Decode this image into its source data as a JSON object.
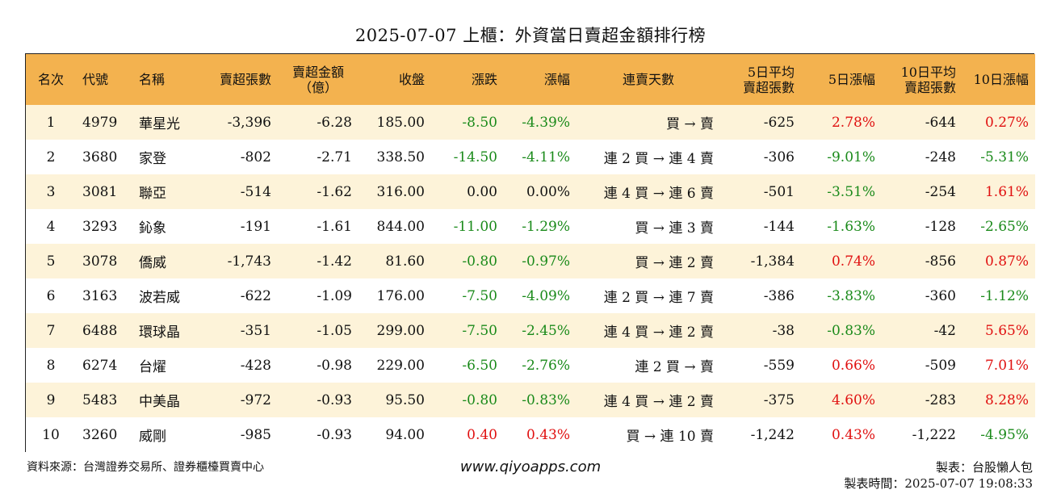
{
  "title": "2025-07-07 上櫃：外資當日賣超金額排行榜",
  "colors": {
    "header_bg": "#f3b24f",
    "odd_row_bg": "#fdf3d9",
    "up": "#e01010",
    "down": "#1a8a1a"
  },
  "headers": {
    "rank": "名次",
    "code": "代號",
    "name": "名稱",
    "sell_lots": "賣超張數",
    "sell_amount_line1": "賣超金額",
    "sell_amount_line2": "（億）",
    "close": "收盤",
    "change": "漲跌",
    "pct": "漲幅",
    "days": "連賣天數",
    "avg5_line1": "5日平均",
    "avg5_line2": "賣超張數",
    "pct5": "5日漲幅",
    "avg10_line1": "10日平均",
    "avg10_line2": "賣超張數",
    "pct10": "10日漲幅"
  },
  "rows": [
    {
      "rank": "1",
      "code": "4979",
      "name": "華星光",
      "lots": "-3,396",
      "amount": "-6.28",
      "close": "185.00",
      "chg": "-8.50",
      "chg_dir": "down",
      "pct": "-4.39%",
      "pct_dir": "down",
      "days": "買 → 賣",
      "avg5": "-625",
      "pct5": "2.78%",
      "pct5_dir": "up",
      "avg10": "-644",
      "pct10": "0.27%",
      "pct10_dir": "up"
    },
    {
      "rank": "2",
      "code": "3680",
      "name": "家登",
      "lots": "-802",
      "amount": "-2.71",
      "close": "338.50",
      "chg": "-14.50",
      "chg_dir": "down",
      "pct": "-4.11%",
      "pct_dir": "down",
      "days": "連 2 買 → 連 4 賣",
      "avg5": "-306",
      "pct5": "-9.01%",
      "pct5_dir": "down",
      "avg10": "-248",
      "pct10": "-5.31%",
      "pct10_dir": "down"
    },
    {
      "rank": "3",
      "code": "3081",
      "name": "聯亞",
      "lots": "-514",
      "amount": "-1.62",
      "close": "316.00",
      "chg": "0.00",
      "chg_dir": "flat",
      "pct": "0.00%",
      "pct_dir": "flat",
      "days": "連 4 買 → 連 6 賣",
      "avg5": "-501",
      "pct5": "-3.51%",
      "pct5_dir": "down",
      "avg10": "-254",
      "pct10": "1.61%",
      "pct10_dir": "up"
    },
    {
      "rank": "4",
      "code": "3293",
      "name": "鈊象",
      "lots": "-191",
      "amount": "-1.61",
      "close": "844.00",
      "chg": "-11.00",
      "chg_dir": "down",
      "pct": "-1.29%",
      "pct_dir": "down",
      "days": "買 → 連 3 賣",
      "avg5": "-144",
      "pct5": "-1.63%",
      "pct5_dir": "down",
      "avg10": "-128",
      "pct10": "-2.65%",
      "pct10_dir": "down"
    },
    {
      "rank": "5",
      "code": "3078",
      "name": "僑威",
      "lots": "-1,743",
      "amount": "-1.42",
      "close": "81.60",
      "chg": "-0.80",
      "chg_dir": "down",
      "pct": "-0.97%",
      "pct_dir": "down",
      "days": "買 → 連 2 賣",
      "avg5": "-1,384",
      "pct5": "0.74%",
      "pct5_dir": "up",
      "avg10": "-856",
      "pct10": "0.87%",
      "pct10_dir": "up"
    },
    {
      "rank": "6",
      "code": "3163",
      "name": "波若威",
      "lots": "-622",
      "amount": "-1.09",
      "close": "176.00",
      "chg": "-7.50",
      "chg_dir": "down",
      "pct": "-4.09%",
      "pct_dir": "down",
      "days": "連 2 買 → 連 7 賣",
      "avg5": "-386",
      "pct5": "-3.83%",
      "pct5_dir": "down",
      "avg10": "-360",
      "pct10": "-1.12%",
      "pct10_dir": "down"
    },
    {
      "rank": "7",
      "code": "6488",
      "name": "環球晶",
      "lots": "-351",
      "amount": "-1.05",
      "close": "299.00",
      "chg": "-7.50",
      "chg_dir": "down",
      "pct": "-2.45%",
      "pct_dir": "down",
      "days": "連 4 買 → 連 2 賣",
      "avg5": "-38",
      "pct5": "-0.83%",
      "pct5_dir": "down",
      "avg10": "-42",
      "pct10": "5.65%",
      "pct10_dir": "up"
    },
    {
      "rank": "8",
      "code": "6274",
      "name": "台燿",
      "lots": "-428",
      "amount": "-0.98",
      "close": "229.00",
      "chg": "-6.50",
      "chg_dir": "down",
      "pct": "-2.76%",
      "pct_dir": "down",
      "days": "連 2 買 → 賣",
      "avg5": "-559",
      "pct5": "0.66%",
      "pct5_dir": "up",
      "avg10": "-509",
      "pct10": "7.01%",
      "pct10_dir": "up"
    },
    {
      "rank": "9",
      "code": "5483",
      "name": "中美晶",
      "lots": "-972",
      "amount": "-0.93",
      "close": "95.50",
      "chg": "-0.80",
      "chg_dir": "down",
      "pct": "-0.83%",
      "pct_dir": "down",
      "days": "連 4 買 → 連 2 賣",
      "avg5": "-375",
      "pct5": "4.60%",
      "pct5_dir": "up",
      "avg10": "-283",
      "pct10": "8.28%",
      "pct10_dir": "up"
    },
    {
      "rank": "10",
      "code": "3260",
      "name": "威剛",
      "lots": "-985",
      "amount": "-0.93",
      "close": "94.00",
      "chg": "0.40",
      "chg_dir": "up",
      "pct": "0.43%",
      "pct_dir": "up",
      "days": "買 → 連 10 賣",
      "avg5": "-1,242",
      "pct5": "0.43%",
      "pct5_dir": "up",
      "avg10": "-1,222",
      "pct10": "-4.95%",
      "pct10_dir": "down"
    }
  ],
  "footer": {
    "source": "資料來源：台灣證券交易所、證券櫃檯買賣中心",
    "website": "www.qiyoapps.com",
    "maker": "製表：台股懶人包",
    "made_time": "製表時間：2025-07-07 19:08:33"
  }
}
